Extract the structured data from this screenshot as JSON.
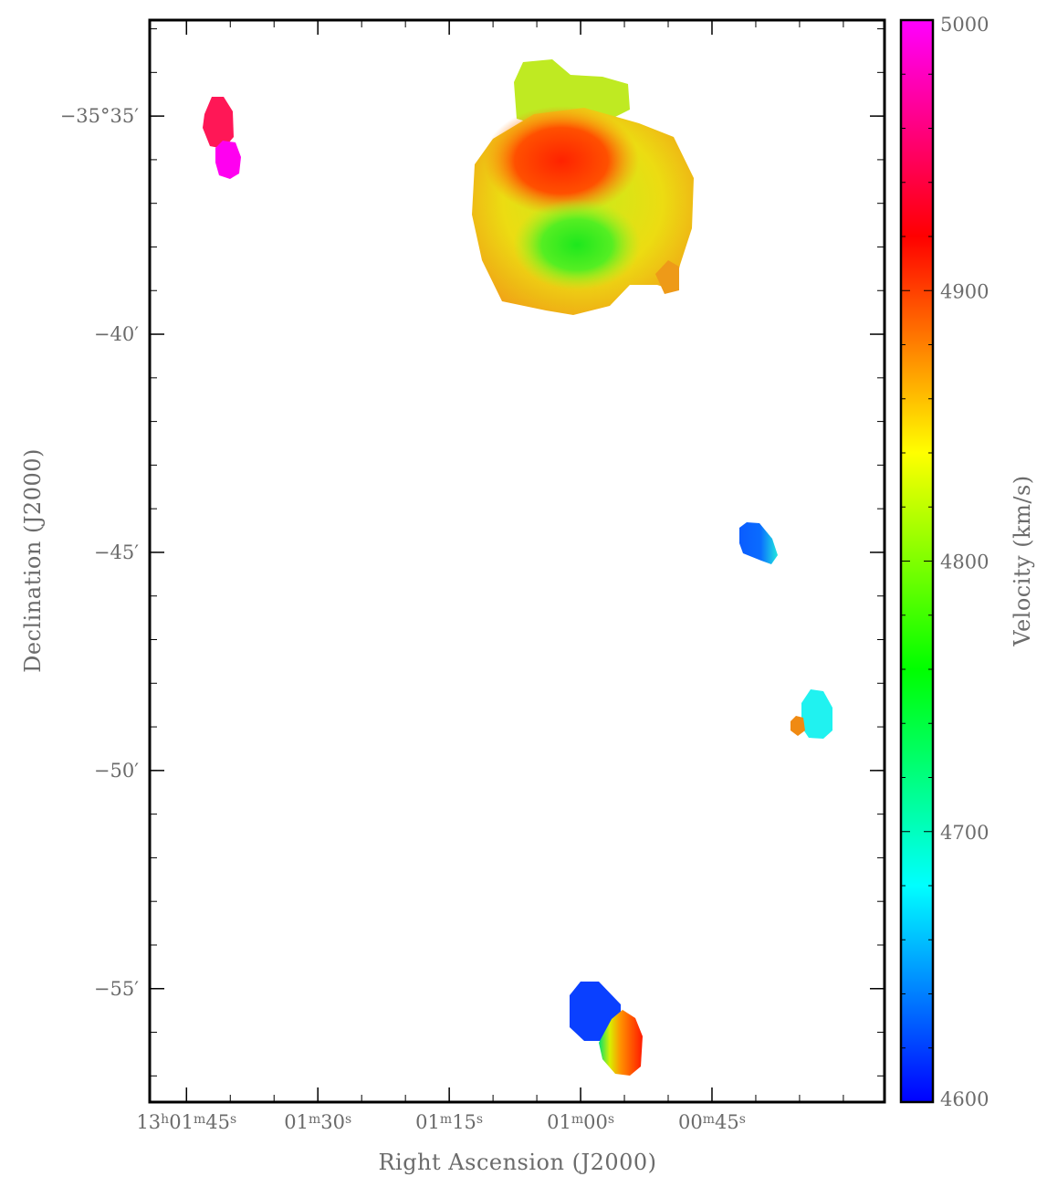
{
  "chart_data": {
    "type": "heatmap",
    "title": "",
    "xlabel": "Right Ascension (J2000)",
    "ylabel": "Declination (J2000)",
    "colorbar_label": "Velocity (km/s)",
    "x_ticks": [
      {
        "label": "13h01m45s",
        "ra_sec": 105,
        "parts": [
          "13",
          "h",
          "01",
          "m",
          "45",
          "s"
        ]
      },
      {
        "label": "01m30s",
        "ra_sec": 90,
        "parts": [
          "",
          "",
          "01",
          "m",
          "30",
          "s"
        ]
      },
      {
        "label": "01m15s",
        "ra_sec": 75,
        "parts": [
          "",
          "",
          "01",
          "m",
          "15",
          "s"
        ]
      },
      {
        "label": "01m00s",
        "ra_sec": 60,
        "parts": [
          "",
          "",
          "01",
          "m",
          "00",
          "s"
        ]
      },
      {
        "label": "00m45s",
        "ra_sec": 45,
        "parts": [
          "",
          "",
          "00",
          "m",
          "45",
          "s"
        ]
      }
    ],
    "y_ticks": [
      {
        "label": "−35°35′",
        "dec_arcmin": -35
      },
      {
        "label": "−40′",
        "dec_arcmin": -40
      },
      {
        "label": "−45′",
        "dec_arcmin": -45
      },
      {
        "label": "−50′",
        "dec_arcmin": -50
      },
      {
        "label": "−55′",
        "dec_arcmin": -55
      }
    ],
    "x_range_ra_sec": [
      109.2,
      25.3
    ],
    "y_range_dec_arcmin": [
      -32.8,
      -57.6
    ],
    "colorbar": {
      "min": 4600,
      "max": 5000,
      "ticks": [
        {
          "label": "5000",
          "value": 5000
        },
        {
          "label": "4900",
          "value": 4900
        },
        {
          "label": "4800",
          "value": 4800
        },
        {
          "label": "4700",
          "value": 4700
        },
        {
          "label": "4600",
          "value": 4600
        }
      ],
      "colors": [
        "#0000ff",
        "#00ffff",
        "#00ff00",
        "#ffff00",
        "#ff0000",
        "#ff00ff"
      ]
    },
    "sources": [
      {
        "id": "main-galaxy",
        "ra_sec": 62.5,
        "dec_arcmin": -37.0
      },
      {
        "id": "northeast-pair",
        "ra_sec": 104.5,
        "dec_arcmin": -35.3
      },
      {
        "id": "source-45",
        "ra_sec": 44.5,
        "dec_arcmin": -44.8
      },
      {
        "id": "source-49",
        "ra_sec": 40.5,
        "dec_arcmin": -48.7
      },
      {
        "id": "southern-pair",
        "ra_sec": 61.5,
        "dec_arcmin": -55.9
      }
    ]
  }
}
